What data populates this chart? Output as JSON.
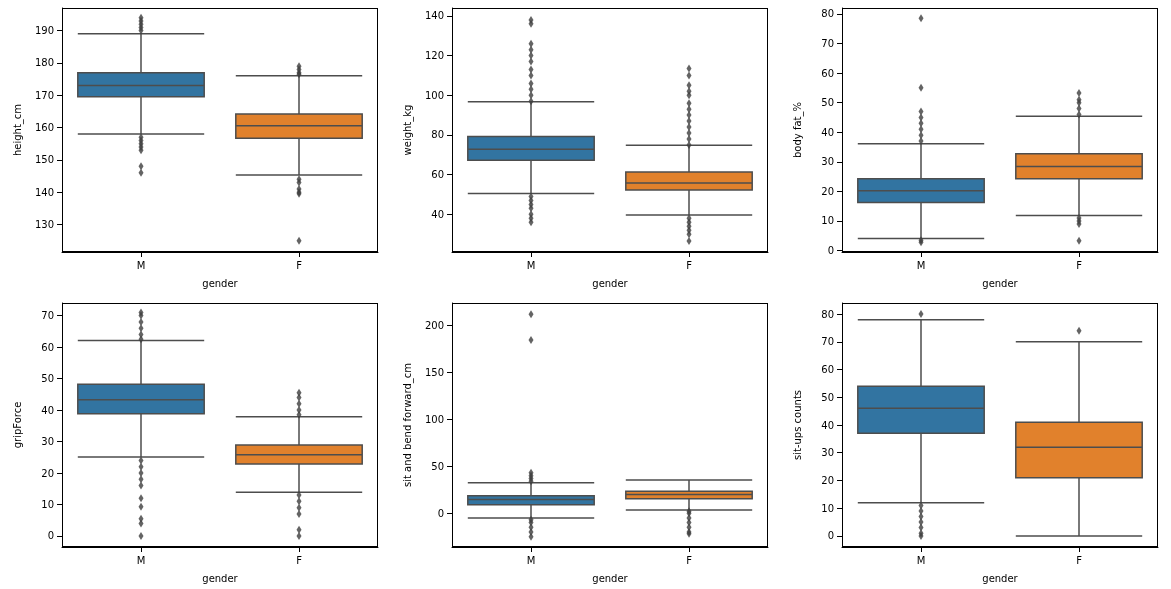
{
  "chart_data": [
    {
      "type": "box",
      "categories": [
        "M",
        "F"
      ],
      "xlabel": "gender",
      "ylabel": "height_cm",
      "ylim": [
        121.5,
        197
      ],
      "yticks": [
        130,
        140,
        150,
        160,
        170,
        180,
        190
      ],
      "grid": false,
      "marker": "diamond",
      "colors": [
        "#3274a1",
        "#e1812c"
      ],
      "boxes": [
        {
          "low": 158,
          "q1": 169.5,
          "median": 173,
          "q3": 177,
          "high": 189,
          "outliers": [
            190,
            191,
            192,
            193,
            194,
            157,
            156,
            155,
            154,
            153,
            148,
            146
          ]
        },
        {
          "low": 145.3,
          "q1": 156.7,
          "median": 160.6,
          "q3": 164.2,
          "high": 176,
          "outliers": [
            176.5,
            177,
            178,
            179,
            144,
            143,
            141,
            140,
            139.5,
            125
          ]
        }
      ]
    },
    {
      "type": "box",
      "categories": [
        "M",
        "F"
      ],
      "xlabel": "gender",
      "ylabel": "weight_kg",
      "ylim": [
        21,
        144
      ],
      "yticks": [
        40,
        60,
        80,
        100,
        120,
        140
      ],
      "grid": false,
      "marker": "diamond",
      "colors": [
        "#3274a1",
        "#e1812c"
      ],
      "boxes": [
        {
          "low": 50.5,
          "q1": 67.2,
          "median": 72.8,
          "q3": 79.2,
          "high": 96.8,
          "outliers": [
            97,
            100,
            103,
            106,
            110,
            113,
            117,
            120,
            123,
            126,
            136,
            138,
            49,
            47,
            45,
            43,
            40,
            38,
            36
          ]
        },
        {
          "low": 39.6,
          "q1": 52.3,
          "median": 55.8,
          "q3": 61.3,
          "high": 74.8,
          "outliers": [
            75,
            78,
            81,
            84,
            87,
            90,
            93,
            96,
            100,
            102,
            105,
            110,
            113.5,
            38,
            36,
            34,
            32,
            30,
            26.5
          ]
        }
      ]
    },
    {
      "type": "box",
      "categories": [
        "M",
        "F"
      ],
      "xlabel": "gender",
      "ylabel": "body fat_%",
      "ylim": [
        -0.5,
        82
      ],
      "yticks": [
        0,
        10,
        20,
        30,
        40,
        50,
        60,
        70,
        80
      ],
      "grid": false,
      "marker": "diamond",
      "colors": [
        "#3274a1",
        "#e1812c"
      ],
      "boxes": [
        {
          "low": 4.1,
          "q1": 16.2,
          "median": 20.2,
          "q3": 24.3,
          "high": 36.1,
          "outliers": [
            37,
            39,
            41,
            43,
            45,
            47,
            55,
            78.5,
            3.5,
            2.8
          ]
        },
        {
          "low": 11.8,
          "q1": 24.3,
          "median": 28.4,
          "q3": 32.7,
          "high": 45.4,
          "outliers": [
            46,
            48,
            50,
            51,
            53.3,
            11,
            10,
            9,
            3.3
          ]
        }
      ]
    },
    {
      "type": "box",
      "categories": [
        "M",
        "F"
      ],
      "xlabel": "gender",
      "ylabel": "gripForce",
      "ylim": [
        -3.5,
        74
      ],
      "yticks": [
        0,
        10,
        20,
        30,
        40,
        50,
        60,
        70
      ],
      "grid": false,
      "marker": "diamond",
      "colors": [
        "#3274a1",
        "#e1812c"
      ],
      "boxes": [
        {
          "low": 25.1,
          "q1": 38.8,
          "median": 43.3,
          "q3": 48.2,
          "high": 62.1,
          "outliers": [
            62.5,
            64,
            66,
            68,
            70,
            71,
            24,
            22,
            20,
            18,
            16,
            12,
            9.3,
            5.5,
            4,
            0
          ]
        },
        {
          "low": 13.9,
          "q1": 22.9,
          "median": 25.8,
          "q3": 28.9,
          "high": 37.9,
          "outliers": [
            38.5,
            40,
            42,
            44,
            45.5,
            13,
            11,
            9,
            7,
            2,
            0
          ]
        }
      ]
    },
    {
      "type": "box",
      "categories": [
        "M",
        "F"
      ],
      "xlabel": "gender",
      "ylabel": "sit and bend forward_cm",
      "ylim": [
        -36,
        224
      ],
      "yticks": [
        0,
        50,
        100,
        150,
        200
      ],
      "grid": false,
      "marker": "diamond",
      "colors": [
        "#3274a1",
        "#e1812c"
      ],
      "boxes": [
        {
          "low": -5,
          "q1": 9,
          "median": 14.5,
          "q3": 18.5,
          "high": 32.5,
          "outliers": [
            34,
            37,
            40,
            43,
            184.5,
            212,
            -7,
            -10,
            -15,
            -20,
            -25
          ]
        },
        {
          "low": 3.5,
          "q1": 15.5,
          "median": 20,
          "q3": 23.5,
          "high": 35.5,
          "outliers": [
            2,
            0,
            -5,
            -10,
            -15,
            -20,
            -22
          ]
        }
      ]
    },
    {
      "type": "box",
      "categories": [
        "M",
        "F"
      ],
      "xlabel": "gender",
      "ylabel": "sit-ups counts",
      "ylim": [
        -4,
        84
      ],
      "yticks": [
        0,
        10,
        20,
        30,
        40,
        50,
        60,
        70,
        80
      ],
      "grid": false,
      "marker": "diamond",
      "colors": [
        "#3274a1",
        "#e1812c"
      ],
      "boxes": [
        {
          "low": 12,
          "q1": 37,
          "median": 46,
          "q3": 54,
          "high": 78,
          "outliers": [
            80,
            11,
            9,
            7,
            5,
            3,
            1,
            0
          ]
        },
        {
          "low": 0,
          "q1": 21,
          "median": 32,
          "q3": 41,
          "high": 70,
          "outliers": [
            74
          ]
        }
      ]
    }
  ]
}
